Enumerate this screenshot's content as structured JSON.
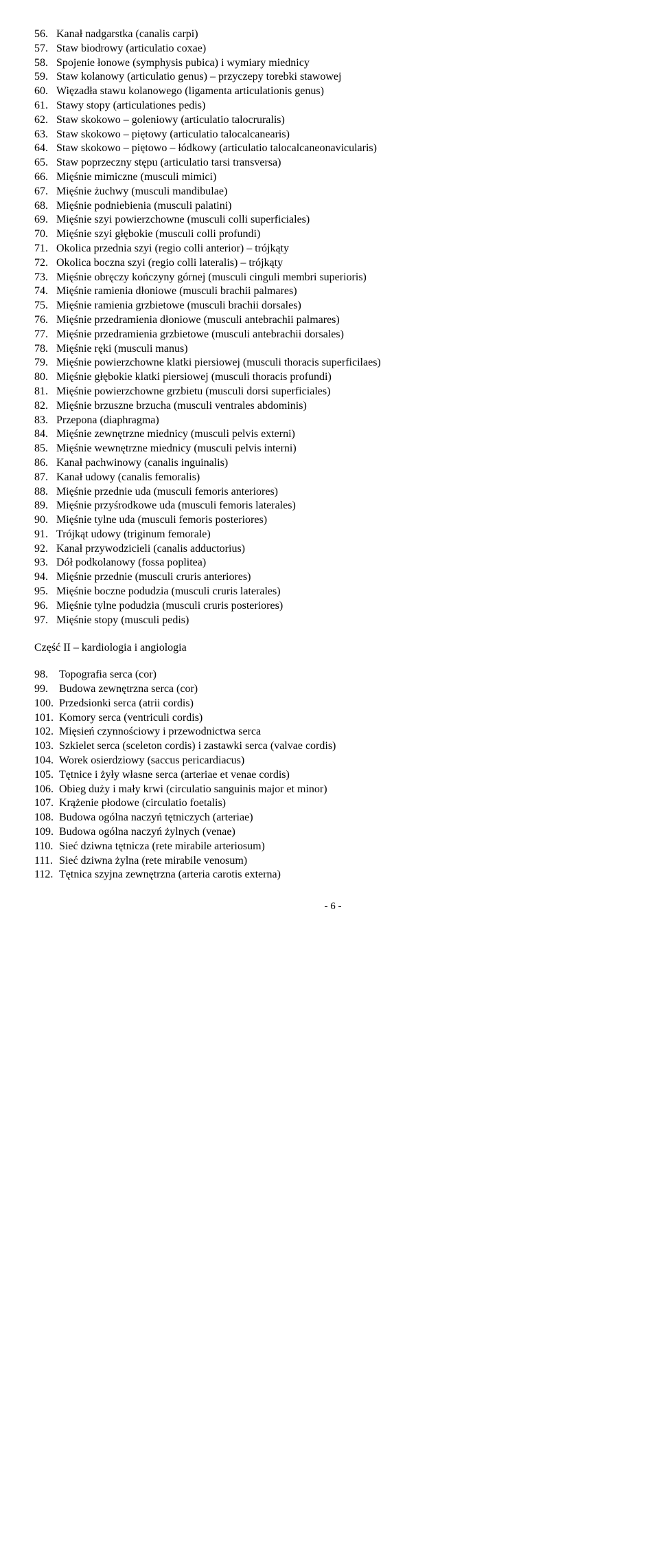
{
  "list1": [
    {
      "n": "56.",
      "t": "Kanał nadgarstka (canalis carpi)"
    },
    {
      "n": "57.",
      "t": "Staw biodrowy (articulatio coxae)"
    },
    {
      "n": "58.",
      "t": "Spojenie łonowe (symphysis pubica) i wymiary miednicy"
    },
    {
      "n": "59.",
      "t": "Staw kolanowy (articulatio genus) – przyczepy torebki stawowej"
    },
    {
      "n": "60.",
      "t": "Więzadła stawu kolanowego (ligamenta articulationis genus)"
    },
    {
      "n": "61.",
      "t": "Stawy stopy (articulationes pedis)"
    },
    {
      "n": "62.",
      "t": "Staw skokowo – goleniowy (articulatio talocruralis)"
    },
    {
      "n": "63.",
      "t": "Staw skokowo – piętowy (articulatio talocalcanearis)"
    },
    {
      "n": "64.",
      "t": "Staw skokowo – piętowo – łódkowy (articulatio talocalcaneonavicularis)"
    },
    {
      "n": "65.",
      "t": "Staw poprzeczny stępu (articulatio tarsi transversa)"
    },
    {
      "n": "66.",
      "t": "Mięśnie mimiczne (musculi mimici)"
    },
    {
      "n": "67.",
      "t": "Mięśnie żuchwy (musculi mandibulae)"
    },
    {
      "n": "68.",
      "t": "Mięśnie podniebienia (musculi palatini)"
    },
    {
      "n": "69.",
      "t": "Mięśnie szyi powierzchowne (musculi colli superficiales)"
    },
    {
      "n": "70.",
      "t": "Mięśnie szyi głębokie (musculi colli profundi)"
    },
    {
      "n": "71.",
      "t": "Okolica przednia szyi (regio colli anterior) – trójkąty"
    },
    {
      "n": "72.",
      "t": "Okolica boczna szyi (regio colli lateralis) – trójkąty"
    },
    {
      "n": "73.",
      "t": "Mięśnie obręczy kończyny górnej (musculi cinguli membri superioris)"
    },
    {
      "n": "74.",
      "t": "Mięśnie ramienia dłoniowe (musculi brachii palmares)"
    },
    {
      "n": "75.",
      "t": "Mięśnie ramienia grzbietowe (musculi brachii dorsales)"
    },
    {
      "n": "76.",
      "t": "Mięśnie przedramienia dłoniowe (musculi antebrachii palmares)"
    },
    {
      "n": "77.",
      "t": "Mięśnie przedramienia grzbietowe (musculi antebrachii dorsales)"
    },
    {
      "n": "78.",
      "t": "Mięśnie ręki (musculi manus)"
    },
    {
      "n": "79.",
      "t": "Mięśnie powierzchowne klatki piersiowej (musculi thoracis superficilaes)"
    },
    {
      "n": "80.",
      "t": "Mięśnie głębokie klatki piersiowej (musculi thoracis profundi)"
    },
    {
      "n": "81.",
      "t": "Mięśnie powierzchowne grzbietu (musculi dorsi superficiales)"
    },
    {
      "n": "82.",
      "t": "Mięśnie brzuszne brzucha (musculi ventrales abdominis)"
    },
    {
      "n": "83.",
      "t": "Przepona (diaphragma)"
    },
    {
      "n": "84.",
      "t": "Mięśnie zewnętrzne miednicy (musculi pelvis externi)"
    },
    {
      "n": "85.",
      "t": "Mięśnie wewnętrzne miednicy (musculi pelvis interni)"
    },
    {
      "n": "86.",
      "t": "Kanał pachwinowy (canalis inguinalis)"
    },
    {
      "n": "87.",
      "t": "Kanał udowy (canalis femoralis)"
    },
    {
      "n": "88.",
      "t": "Mięśnie przednie uda (musculi femoris anteriores)"
    },
    {
      "n": "89.",
      "t": "Mięśnie przyśrodkowe uda (musculi femoris laterales)"
    },
    {
      "n": "90.",
      "t": "Mięśnie tylne uda (musculi femoris posteriores)"
    },
    {
      "n": "91.",
      "t": "Trójkąt udowy (triginum femorale)"
    },
    {
      "n": "92.",
      "t": "Kanał przywodzicieli (canalis adductorius)"
    },
    {
      "n": "93.",
      "t": "Dół podkolanowy (fossa poplitea)"
    },
    {
      "n": "94.",
      "t": "Mięśnie przednie (musculi cruris anteriores)"
    },
    {
      "n": "95.",
      "t": "Mięśnie boczne podudzia (musculi cruris laterales)"
    },
    {
      "n": "96.",
      "t": "Mięśnie tylne podudzia (musculi cruris posteriores)"
    },
    {
      "n": "97.",
      "t": "Mięśnie stopy (musculi pedis)"
    }
  ],
  "section_title": "Część II – kardiologia i angiologia",
  "list2": [
    {
      "n": "98.",
      "t": "Topografia serca (cor)"
    },
    {
      "n": "99.",
      "t": "Budowa zewnętrzna serca (cor)"
    },
    {
      "n": "100.",
      "t": "Przedsionki serca (atrii cordis)"
    },
    {
      "n": "101.",
      "t": "Komory serca (ventriculi cordis)"
    },
    {
      "n": "102.",
      "t": "Mięsień czynnościowy i przewodnictwa serca"
    },
    {
      "n": "103.",
      "t": "Szkielet serca (sceleton cordis) i zastawki serca (valvae cordis)"
    },
    {
      "n": "104.",
      "t": "Worek osierdziowy (saccus pericardiacus)"
    },
    {
      "n": "105.",
      "t": "Tętnice i żyły własne serca (arteriae et venae cordis)"
    },
    {
      "n": "106.",
      "t": "Obieg duży i mały krwi (circulatio sanguinis major et minor)"
    },
    {
      "n": "107.",
      "t": "Krążenie płodowe (circulatio foetalis)"
    },
    {
      "n": "108.",
      "t": "Budowa ogólna naczyń tętniczych (arteriae)"
    },
    {
      "n": "109.",
      "t": "Budowa ogólna naczyń żylnych (venae)"
    },
    {
      "n": "110.",
      "t": "Sieć dziwna tętnicza (rete mirabile arteriosum)"
    },
    {
      "n": "111.",
      "t": "Sieć dziwna żylna (rete mirabile venosum)"
    },
    {
      "n": "112.",
      "t": "Tętnica szyjna zewnętrzna (arteria carotis externa)"
    }
  ],
  "page_number": "- 6 -"
}
